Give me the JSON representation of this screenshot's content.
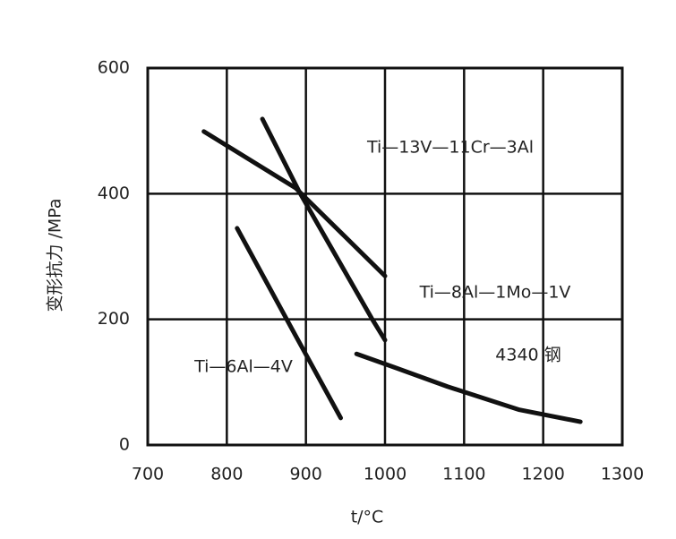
{
  "chart_data": {
    "type": "line",
    "xlabel": "t/°C",
    "ylabel": "变形抗力 /MPa",
    "xlim": [
      700,
      1300
    ],
    "xticks": [
      700,
      800,
      900,
      1000,
      1100,
      1200,
      1300
    ],
    "ylim": [
      0,
      600
    ],
    "yticks": [
      0,
      200,
      400,
      600
    ],
    "grid": true,
    "series": [
      {
        "name": "Ti—13V—11Cr—3Al",
        "color": "#111111",
        "x": [
          845,
          892,
          983,
          1000
        ],
        "values": [
          519,
          402,
          202,
          167
        ]
      },
      {
        "name": "Ti—8Al—1Mo—1V",
        "color": "#111111",
        "x": [
          771,
          887,
          1000
        ],
        "values": [
          499,
          409,
          269
        ]
      },
      {
        "name": "Ti—6Al—4V",
        "color": "#111111",
        "x": [
          813,
          887,
          944
        ],
        "values": [
          345,
          174,
          43
        ]
      },
      {
        "name": "4340 钢",
        "color": "#111111",
        "x": [
          964,
          1011,
          1079,
          1170,
          1247
        ],
        "values": [
          145,
          124,
          93,
          56,
          37
        ]
      }
    ]
  }
}
